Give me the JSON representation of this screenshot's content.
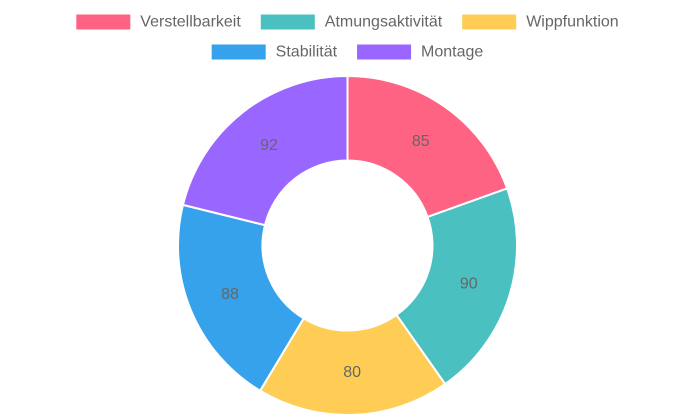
{
  "chart_data": {
    "type": "pie",
    "subtype": "doughnut",
    "categories": [
      "Verstellbarkeit",
      "Atmungsaktivität",
      "Wippfunktion",
      "Stabilität",
      "Montage"
    ],
    "values": [
      85,
      90,
      80,
      88,
      92
    ],
    "colors": [
      "#FF6384",
      "#4BC0C0",
      "#FFCD56",
      "#36A2EB",
      "#9966FF"
    ],
    "data_labels": true,
    "legend_position": "top",
    "title": ""
  }
}
